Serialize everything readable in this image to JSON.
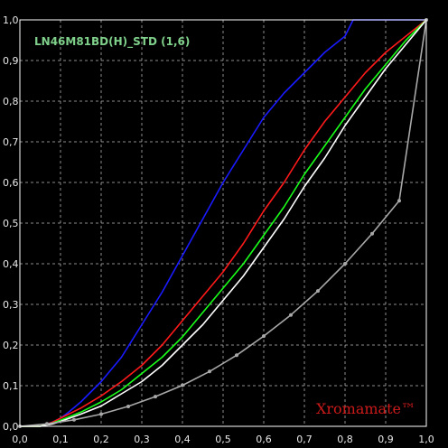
{
  "colors": {
    "background": "#000000",
    "grid": "#bdbdbd",
    "frame": "#ffffff",
    "tick_text": "#e8e8e8",
    "title": "#7fd08a",
    "watermark": "#cc1a1a"
  },
  "chart_data": {
    "type": "line",
    "title": "LN46M81BD(H)_STD (1,6)",
    "watermark": "Xromamate™",
    "xlabel": "",
    "ylabel": "",
    "xlim": [
      0,
      1
    ],
    "ylim": [
      0,
      1
    ],
    "grid": true,
    "grid_style": "dashed",
    "x_ticks": [
      "0,0",
      "0,1",
      "0,2",
      "0,3",
      "0,4",
      "0,5",
      "0,6",
      "0,7",
      "0,8",
      "0,9",
      "1,0"
    ],
    "y_ticks": [
      "0,0",
      "0,1",
      "0,2",
      "0,3",
      "0,4",
      "0,5",
      "0,6",
      "0,7",
      "0,8",
      "0,9",
      "1,0"
    ],
    "series": [
      {
        "color": "#1a1aff",
        "x": [
          0,
          0.05,
          0.08,
          0.1,
          0.12,
          0.15,
          0.18,
          0.2,
          0.25,
          0.3,
          0.35,
          0.4,
          0.45,
          0.5,
          0.55,
          0.6,
          0.65,
          0.7,
          0.75,
          0.8,
          0.82,
          0.85,
          0.9,
          0.95,
          1.0
        ],
        "y": [
          0,
          0,
          0.01,
          0.02,
          0.035,
          0.06,
          0.09,
          0.11,
          0.17,
          0.25,
          0.33,
          0.42,
          0.51,
          0.6,
          0.68,
          0.76,
          0.82,
          0.87,
          0.92,
          0.96,
          1.0,
          1.0,
          1.0,
          1.0,
          1.0
        ]
      },
      {
        "color": "#ff1a1a",
        "x": [
          0,
          0.05,
          0.08,
          0.1,
          0.15,
          0.2,
          0.25,
          0.3,
          0.35,
          0.4,
          0.45,
          0.5,
          0.55,
          0.6,
          0.65,
          0.7,
          0.75,
          0.8,
          0.85,
          0.9,
          0.95,
          1.0
        ],
        "y": [
          0,
          0,
          0.01,
          0.02,
          0.045,
          0.075,
          0.11,
          0.15,
          0.2,
          0.26,
          0.32,
          0.38,
          0.45,
          0.53,
          0.6,
          0.68,
          0.75,
          0.81,
          0.87,
          0.92,
          0.96,
          1.0
        ]
      },
      {
        "color": "#1aff1a",
        "x": [
          0,
          0.05,
          0.08,
          0.1,
          0.15,
          0.2,
          0.25,
          0.3,
          0.35,
          0.4,
          0.45,
          0.5,
          0.55,
          0.6,
          0.65,
          0.7,
          0.75,
          0.8,
          0.85,
          0.9,
          0.95,
          1.0
        ],
        "y": [
          0,
          0,
          0.008,
          0.015,
          0.035,
          0.06,
          0.09,
          0.13,
          0.17,
          0.22,
          0.28,
          0.34,
          0.4,
          0.47,
          0.54,
          0.62,
          0.69,
          0.76,
          0.83,
          0.89,
          0.95,
          1.0
        ]
      },
      {
        "color": "#ffffff",
        "x": [
          0,
          0.05,
          0.08,
          0.1,
          0.15,
          0.2,
          0.25,
          0.3,
          0.35,
          0.4,
          0.45,
          0.5,
          0.55,
          0.6,
          0.65,
          0.7,
          0.75,
          0.8,
          0.85,
          0.9,
          0.95,
          1.0
        ],
        "y": [
          0,
          0,
          0.006,
          0.012,
          0.03,
          0.05,
          0.08,
          0.11,
          0.15,
          0.2,
          0.25,
          0.31,
          0.37,
          0.44,
          0.51,
          0.59,
          0.66,
          0.74,
          0.81,
          0.88,
          0.94,
          1.0
        ]
      },
      {
        "color": "#a8a8a8",
        "markers": true,
        "x": [
          0,
          0.0667,
          0.1333,
          0.2,
          0.2667,
          0.3333,
          0.4,
          0.4667,
          0.5333,
          0.6,
          0.6667,
          0.7333,
          0.8,
          0.8667,
          0.9333,
          1.0
        ],
        "y": [
          0,
          0.006,
          0.016,
          0.03,
          0.049,
          0.073,
          0.101,
          0.135,
          0.175,
          0.222,
          0.274,
          0.333,
          0.4,
          0.474,
          0.555,
          1.0
        ]
      }
    ]
  }
}
